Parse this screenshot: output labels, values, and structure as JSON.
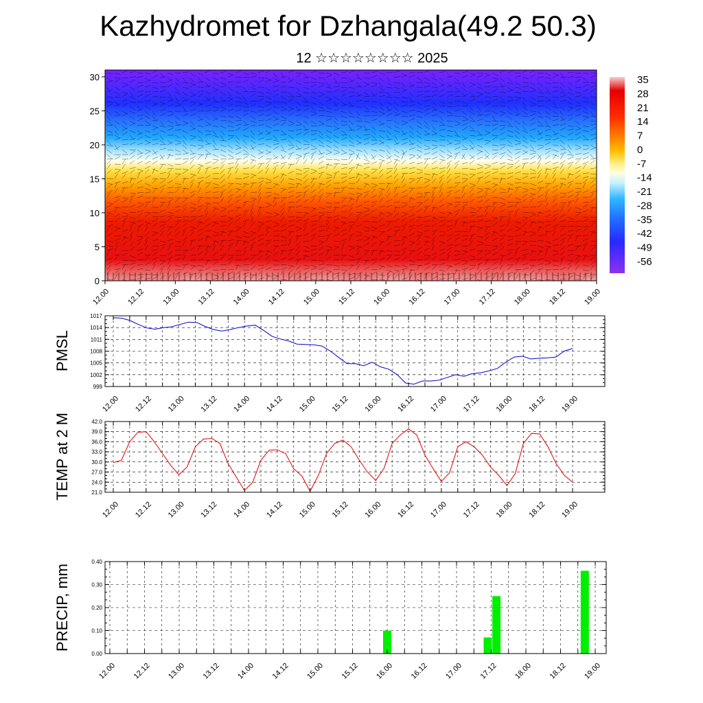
{
  "header": {
    "title": "Kazhydromet for Dzhangala(49.2 50.3)",
    "subtitle": "12 ☆☆☆☆☆☆☆☆ 2025"
  },
  "chart_data": [
    {
      "type": "heatmap",
      "title": "Kazhydromet for Dzhangala(49.2 50.3)",
      "xlabel": "",
      "ylabel": "",
      "x_ticks": [
        "12.00",
        "12.12",
        "13.00",
        "13.12",
        "14.00",
        "14.12",
        "15.00",
        "15.12",
        "16.00",
        "16.12",
        "17.00",
        "17.12",
        "18.00",
        "18.12",
        "19.00"
      ],
      "y_ticks": [
        0,
        5,
        10,
        15,
        20,
        25,
        30
      ],
      "ylim": [
        0,
        31
      ],
      "colorbar_labels": [
        "35",
        "28",
        "21",
        "14",
        "7",
        "0",
        "-7",
        "-14",
        "-21",
        "-28",
        "-35",
        "-42",
        "-49",
        "-56"
      ],
      "colorbar_colors": [
        "#f4c0c0",
        "#e80000",
        "#ff3a00",
        "#ff7a00",
        "#ffb000",
        "#ffe060",
        "#ffffb0",
        "#c8f0ff",
        "#40c8ff",
        "#1e8cff",
        "#2c50ff",
        "#3030ff",
        "#4000e0",
        "#8020ff"
      ],
      "wind_barbs": true
    },
    {
      "type": "line",
      "ylabel": "PMSL",
      "x_ticks": [
        "12.00",
        "12.12",
        "13.00",
        "13.12",
        "14.00",
        "14.12",
        "15.00",
        "15.12",
        "16.00",
        "16.12",
        "17.00",
        "17.12",
        "18.00",
        "18.12",
        "19.00"
      ],
      "y_ticks": [
        "1017",
        "1014",
        "1011",
        "1008",
        "1005",
        "1002",
        "999"
      ],
      "ylim": [
        999,
        1017
      ],
      "color": "#0000cc",
      "series": [
        {
          "values": [
            1016.5,
            1016.4,
            1015.8,
            1014.8,
            1013.9,
            1013.6,
            1014.0,
            1014.2,
            1014.8,
            1015.4,
            1015.3,
            1014.3,
            1013.5,
            1013.1,
            1013.5,
            1014.0,
            1014.4,
            1014.6,
            1013.3,
            1011.8,
            1011.1,
            1010.6,
            1009.8,
            1009.7,
            1009.6,
            1009.3,
            1008.0,
            1006.4,
            1004.8,
            1004.8,
            1004.3,
            1005.2,
            1004.0,
            1003.4,
            1002.0,
            999.9,
            999.6,
            1000.4,
            1000.4,
            1000.6,
            1001.3,
            1002.0,
            1001.6,
            1002.3,
            1002.5,
            1003.0,
            1003.6,
            1005.2,
            1006.5,
            1006.7,
            1006.0,
            1006.2,
            1006.3,
            1006.5,
            1008.0,
            1008.7
          ]
        }
      ]
    },
    {
      "type": "line",
      "ylabel": "TEMP at 2 M",
      "x_ticks": [
        "12.00",
        "12.12",
        "13.00",
        "13.12",
        "14.00",
        "14.12",
        "15.00",
        "15.12",
        "16.00",
        "16.12",
        "17.00",
        "17.12",
        "18.00",
        "18.12",
        "19.00"
      ],
      "y_ticks": [
        "42.0",
        "39.0",
        "36.0",
        "33.0",
        "30.0",
        "27.0",
        "24.0",
        "21.0"
      ],
      "ylim": [
        21,
        42
      ],
      "color": "#dd0000",
      "series": [
        {
          "values": [
            29.8,
            30.5,
            36.0,
            38.8,
            39.0,
            36.0,
            32.5,
            29.0,
            26.2,
            28.5,
            34.5,
            36.8,
            37.0,
            35.5,
            29.5,
            25.5,
            21.5,
            24.0,
            30.5,
            33.5,
            33.6,
            32.5,
            28.0,
            25.8,
            21.3,
            26.0,
            32.5,
            35.5,
            36.5,
            34.5,
            30.5,
            27.0,
            24.5,
            28.0,
            35.5,
            38.0,
            39.8,
            38.0,
            32.0,
            28.0,
            24.2,
            26.8,
            34.5,
            36.0,
            34.5,
            32.0,
            28.5,
            26.0,
            23.0,
            26.5,
            35.5,
            38.5,
            38.3,
            34.5,
            29.5,
            26.0,
            24.0
          ]
        }
      ]
    },
    {
      "type": "bar",
      "ylabel": "PRECIP, mm",
      "x_ticks": [
        "12.00",
        "12.12",
        "13.00",
        "13.12",
        "14.00",
        "14.12",
        "15.00",
        "15.12",
        "16.00",
        "16.12",
        "17.00",
        "17.12",
        "18.00",
        "18.12",
        "19.00"
      ],
      "y_ticks": [
        "0.40",
        "0.30",
        "0.20",
        "0.10",
        "0.00"
      ],
      "ylim": [
        0,
        0.4
      ],
      "color": "#00ee00",
      "bars": [
        {
          "x_index": 8.0,
          "value": 0.1
        },
        {
          "x_index": 10.9,
          "value": 0.07
        },
        {
          "x_index": 11.15,
          "value": 0.25
        },
        {
          "x_index": 13.7,
          "value": 0.36
        }
      ]
    }
  ]
}
